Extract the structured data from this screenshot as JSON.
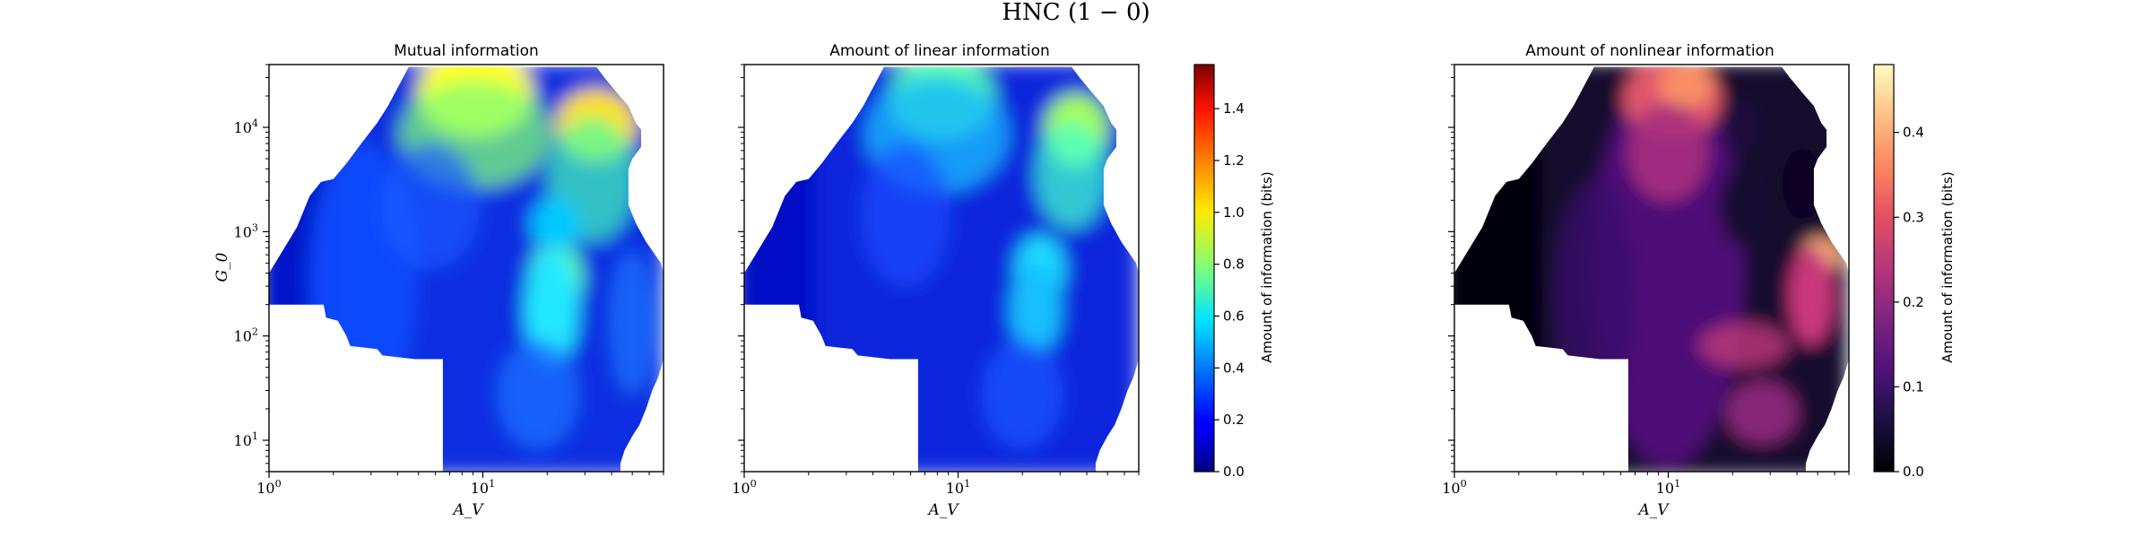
{
  "figure": {
    "suptitle": "HNC (1 − 0)"
  },
  "chart_data": [
    {
      "type": "heatmap",
      "title": "Mutual information",
      "xlabel": "A_V",
      "ylabel": "G_0",
      "xscale": "log",
      "yscale": "log",
      "xlim": [
        1,
        70
      ],
      "ylim": [
        5,
        40000
      ],
      "xticks": [
        {
          "value": 1,
          "label": "10^0"
        },
        {
          "value": 10,
          "label": "10^1"
        }
      ],
      "yticks": [
        {
          "value": 10,
          "label": "10^1"
        },
        {
          "value": 100,
          "label": "10^2"
        },
        {
          "value": 1000,
          "label": "10^3"
        },
        {
          "value": 10000,
          "label": "10^4"
        }
      ],
      "colormap": "jet",
      "show_yticklabels": true,
      "regions": [
        {
          "region": "high G_0 (G_0 ≈ 2e4), A_V ≈ 8–15",
          "value": 0.95
        },
        {
          "region": "G_0 ≈ 1e4, A_V ≈ 25–40",
          "value": 0.8
        },
        {
          "region": "G_0 ≈ 1e2–5e2, A_V ≈ 15–30",
          "value": 0.6
        },
        {
          "region": "low A_V edge (A_V < 5)",
          "value": 0.08
        }
      ]
    },
    {
      "type": "heatmap",
      "title": "Amount of linear information",
      "xlabel": "A_V",
      "xscale": "log",
      "yscale": "log",
      "xlim": [
        1,
        70
      ],
      "ylim": [
        5,
        40000
      ],
      "xticks": [
        {
          "value": 1,
          "label": "10^0"
        },
        {
          "value": 10,
          "label": "10^1"
        }
      ],
      "colormap": "jet",
      "show_yticklabels": false,
      "colorbar": {
        "label": "Amount of information (bits)",
        "range": [
          0,
          1.57
        ],
        "ticks": [
          "0.0",
          "0.2",
          "0.4",
          "0.6",
          "0.8",
          "1.0",
          "1.2",
          "1.4"
        ]
      },
      "regions": [
        {
          "region": "G_0 ≈ 1e4, A_V ≈ 25–40",
          "value": 0.65
        },
        {
          "region": "G_0 ≈ 2e4, A_V ≈ 8–15",
          "value": 0.6
        },
        {
          "region": "G_0 ≈ 1e2–5e2, A_V ≈ 15–30",
          "value": 0.45
        },
        {
          "region": "low A_V edge (A_V < 5)",
          "value": 0.07
        }
      ]
    },
    {
      "type": "heatmap",
      "title": "Amount of nonlinear information",
      "xlabel": "A_V",
      "xscale": "log",
      "yscale": "log",
      "xlim": [
        1,
        70
      ],
      "ylim": [
        5,
        40000
      ],
      "xticks": [
        {
          "value": 1,
          "label": "10^0"
        },
        {
          "value": 10,
          "label": "10^1"
        }
      ],
      "colormap": "magma",
      "show_yticklabels": false,
      "colorbar": {
        "label": "Amount of information (bits)",
        "range": [
          0,
          0.48
        ],
        "ticks": [
          "0.0",
          "0.1",
          "0.2",
          "0.3",
          "0.4"
        ]
      },
      "regions": [
        {
          "region": "G_0 ≈ 5e2, A_V ≈ 55–65",
          "value": 0.42
        },
        {
          "region": "G_0 ≈ 2e4, A_V ≈ 12–25",
          "value": 0.33
        },
        {
          "region": "G_0 ≈ 1e2, A_V ≈ 20–40",
          "value": 0.25
        },
        {
          "region": "low A_V edge (A_V < 5)",
          "value": 0.02
        }
      ]
    }
  ]
}
